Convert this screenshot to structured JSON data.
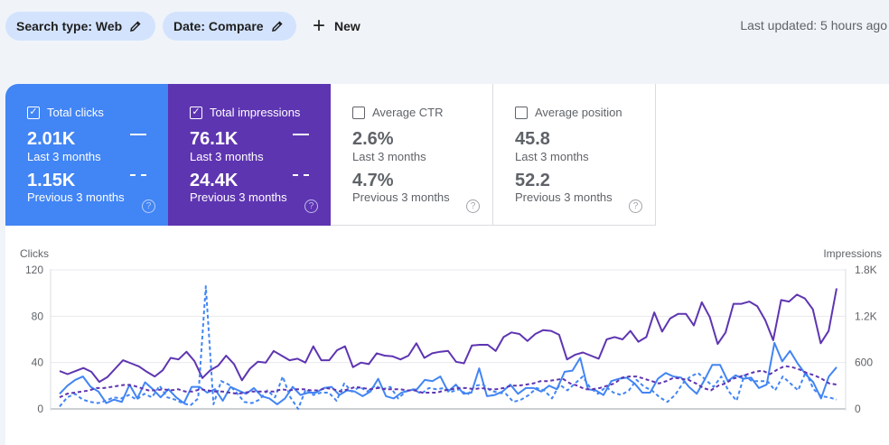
{
  "filters": {
    "search_type": "Search type: Web",
    "date": "Date: Compare",
    "new_label": "New",
    "last_updated": "Last updated: 5 hours ago"
  },
  "metrics": [
    {
      "label": "Total clicks",
      "value_current": "2.01K",
      "period_current": "Last 3 months",
      "value_previous": "1.15K",
      "period_previous": "Previous 3 months",
      "selected": true,
      "color": "#4285f4"
    },
    {
      "label": "Total impressions",
      "value_current": "76.1K",
      "period_current": "Last 3 months",
      "value_previous": "24.4K",
      "period_previous": "Previous 3 months",
      "selected": true,
      "color": "#5e35b1"
    },
    {
      "label": "Average CTR",
      "value_current": "2.6%",
      "period_current": "Last 3 months",
      "value_previous": "4.7%",
      "period_previous": "Previous 3 months",
      "selected": false
    },
    {
      "label": "Average position",
      "value_current": "45.8",
      "period_current": "Last 3 months",
      "value_previous": "52.2",
      "period_previous": "Previous 3 months",
      "selected": false
    }
  ],
  "chart_data": {
    "type": "line",
    "ylabel_left": "Clicks",
    "ylabel_right": "Impressions",
    "yticks_left": [
      "0",
      "40",
      "80",
      "120"
    ],
    "yticks_right": [
      "0",
      "600",
      "1.2K",
      "1.8K"
    ],
    "ylim_left": [
      0,
      120
    ],
    "ylim_right": [
      0,
      1800
    ],
    "grid": true,
    "series": [
      {
        "axis": "right",
        "style": "solid",
        "color": "#5e35b1",
        "values": [
          490,
          450,
          490,
          530,
          480,
          350,
          410,
          520,
          630,
          590,
          550,
          480,
          420,
          500,
          660,
          640,
          740,
          620,
          400,
          500,
          560,
          690,
          580,
          370,
          520,
          610,
          600,
          750,
          690,
          630,
          650,
          600,
          810,
          630,
          630,
          760,
          810,
          540,
          600,
          580,
          720,
          690,
          680,
          640,
          690,
          850,
          660,
          720,
          740,
          750,
          610,
          590,
          820,
          830,
          830,
          750,
          930,
          990,
          970,
          880,
          970,
          1020,
          1010,
          960,
          640,
          700,
          730,
          690,
          650,
          900,
          930,
          900,
          1010,
          870,
          930,
          1250,
          1000,
          1170,
          1230,
          1230,
          1080,
          1380,
          1190,
          840,
          990,
          1360,
          1360,
          1390,
          1330,
          1150,
          890,
          1410,
          1390,
          1480,
          1430,
          1290,
          850,
          1010,
          1560
        ]
      },
      {
        "axis": "left",
        "style": "solid",
        "color": "#4285f4",
        "values": [
          13,
          20,
          25,
          28,
          19,
          15,
          5,
          8,
          6,
          21,
          9,
          23,
          17,
          10,
          17,
          10,
          5,
          19,
          19,
          14,
          17,
          7,
          19,
          16,
          13,
          18,
          11,
          9,
          4,
          9,
          19,
          12,
          14,
          14,
          18,
          19,
          12,
          16,
          15,
          11,
          15,
          26,
          11,
          9,
          14,
          16,
          17,
          25,
          24,
          28,
          15,
          21,
          13,
          14,
          35,
          11,
          12,
          15,
          21,
          13,
          18,
          18,
          15,
          20,
          17,
          32,
          33,
          44,
          17,
          16,
          12,
          24,
          26,
          27,
          22,
          14,
          14,
          26,
          31,
          28,
          27,
          19,
          13,
          25,
          38,
          38,
          24,
          29,
          26,
          27,
          18,
          21,
          57,
          41,
          50,
          39,
          30,
          23,
          9,
          28,
          36
        ]
      },
      {
        "axis": "left",
        "style": "dashed",
        "color": "#4285f4",
        "values": [
          2,
          10,
          13,
          8,
          6,
          5,
          7,
          10,
          9,
          12,
          8,
          13,
          10,
          20,
          10,
          8,
          5,
          3,
          9,
          106,
          4,
          24,
          21,
          14,
          6,
          5,
          8,
          16,
          10,
          28,
          10,
          0,
          17,
          12,
          14,
          14,
          7,
          22,
          15,
          19,
          15,
          20,
          17,
          19,
          9,
          15,
          17,
          13,
          18,
          17,
          18,
          15,
          17,
          12,
          20,
          21,
          16,
          14,
          13,
          6,
          8,
          12,
          18,
          16,
          9,
          21,
          16,
          22,
          28,
          18,
          13,
          19,
          14,
          12,
          16,
          25,
          19,
          16,
          10,
          6,
          12,
          22,
          28,
          31,
          25,
          19,
          28,
          15,
          7,
          29,
          24,
          24,
          24,
          16,
          28,
          22,
          16,
          32,
          17,
          11,
          10,
          8
        ]
      },
      {
        "axis": "left",
        "style": "dashed",
        "color": "#5e35b1",
        "values": [
          10,
          13,
          14,
          15,
          16,
          18,
          18,
          19,
          20,
          21,
          20,
          18,
          16,
          16,
          17,
          16,
          17,
          15,
          15,
          17,
          16,
          15,
          15,
          14,
          13,
          14,
          15,
          15,
          15,
          15,
          17,
          16,
          17,
          17,
          16,
          16,
          18,
          17,
          15,
          17,
          19,
          18,
          17,
          18,
          17,
          17,
          17,
          16,
          16,
          14,
          14,
          14,
          16,
          17,
          18,
          18,
          17,
          18,
          17,
          17,
          18,
          20,
          20,
          21,
          22,
          24,
          24,
          25,
          26,
          22,
          20,
          17,
          17,
          18,
          20,
          22,
          27,
          28,
          28,
          26,
          24,
          22,
          24,
          27,
          26,
          25,
          22,
          18,
          16,
          20,
          22,
          26,
          28,
          30,
          32,
          33,
          30,
          34,
          37,
          36,
          34,
          31,
          29,
          26,
          22,
          21
        ]
      }
    ]
  }
}
